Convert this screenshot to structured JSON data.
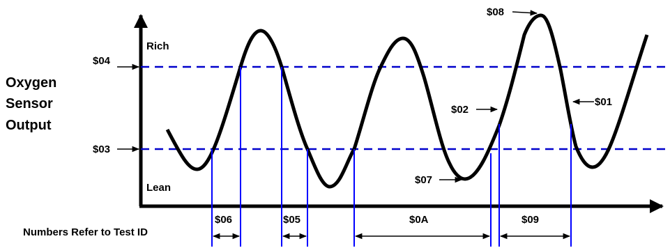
{
  "y_axis_label": [
    "Oxygen",
    "Sensor",
    "Output"
  ],
  "region_labels": {
    "rich": "Rich",
    "lean": "Lean"
  },
  "thresholds": {
    "upper": "$04",
    "lower": "$03"
  },
  "point_labels": {
    "p01": "$01",
    "p02": "$02",
    "p07": "$07",
    "p08": "$08"
  },
  "interval_labels": {
    "i06": "$06",
    "i05": "$05",
    "i0A": "$0A",
    "i09": "$09"
  },
  "caption": "Numbers Refer to Test ID",
  "colors": {
    "axis": "#000000",
    "waveform": "#000000",
    "threshold": "#0000cc",
    "marker": "#0000ff"
  }
}
